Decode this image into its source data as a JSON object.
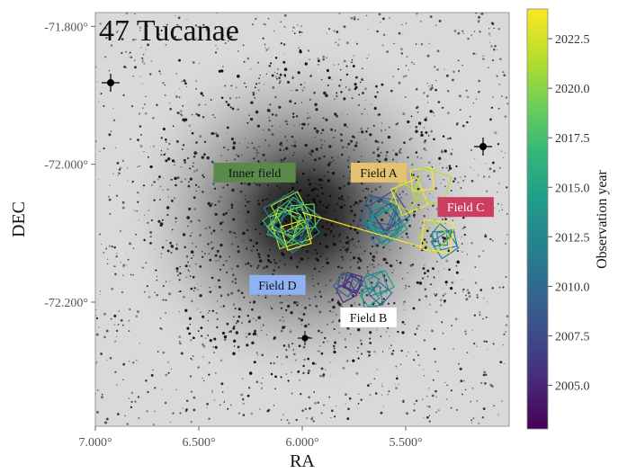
{
  "chart_data": {
    "type": "scatter",
    "title": "47 Tucanae",
    "xlabel": "RA",
    "ylabel": "DEC",
    "xlim": [
      7.0,
      5.0
    ],
    "ylim": [
      -72.38,
      -71.78
    ],
    "x_ticks": [
      7.0,
      6.5,
      6.0,
      5.5
    ],
    "x_tick_labels": [
      "7.000°",
      "6.500°",
      "6.000°",
      "5.500°"
    ],
    "y_ticks": [
      -71.8,
      -72.0,
      -72.2
    ],
    "y_tick_labels": [
      "-71.800°",
      "-72.000°",
      "-72.200°"
    ],
    "colorbar": {
      "label": "Observation year",
      "range": [
        2002.8,
        2024.0
      ],
      "ticks": [
        2005.0,
        2007.5,
        2010.0,
        2012.5,
        2015.0,
        2017.5,
        2020.0,
        2022.5
      ],
      "tick_labels": [
        "2005.0",
        "2007.5",
        "2010.0",
        "2012.5",
        "2015.0",
        "2017.5",
        "2020.0",
        "2022.5"
      ],
      "colormap": [
        "#440154",
        "#482878",
        "#3e4a89",
        "#31688e",
        "#26828e",
        "#1f9e89",
        "#35b779",
        "#6ece58",
        "#b5de2b",
        "#fde725"
      ]
    },
    "fields": [
      {
        "name": "Inner field",
        "ra": 6.03,
        "dec": -72.085,
        "label_ra": 6.23,
        "label_dec": -72.012,
        "label_bg": "#5a8a4a",
        "label_color": "#111111"
      },
      {
        "name": "Field A",
        "ra": 5.61,
        "dec": -72.08,
        "label_ra": 5.63,
        "label_dec": -72.012,
        "label_bg": "#e4c270",
        "label_color": "#111111"
      },
      {
        "name": "Field C",
        "ra": 5.31,
        "dec": -72.108,
        "label_ra": 5.21,
        "label_dec": -72.062,
        "label_bg": "#cc3d5f",
        "label_color": "#ffffff"
      },
      {
        "name": "Field D",
        "ra": 5.78,
        "dec": -72.175,
        "label_ra": 6.12,
        "label_dec": -72.175,
        "label_bg": "#8fb3f2",
        "label_color": "#111111"
      },
      {
        "name": "Field B",
        "ra": 5.66,
        "dec": -72.18,
        "label_ra": 5.68,
        "label_dec": -72.222,
        "label_bg": "#ffffff",
        "label_color": "#111111"
      }
    ],
    "grid": false,
    "legend": "none"
  }
}
